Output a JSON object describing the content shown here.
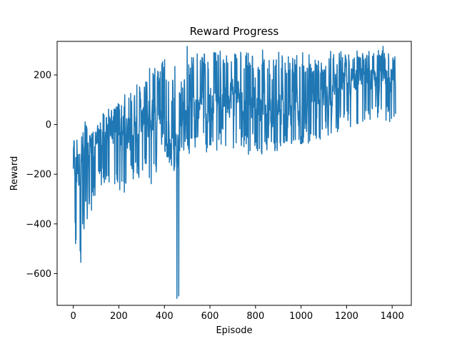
{
  "chart_data": {
    "type": "line",
    "title": "Reward Progress",
    "xlabel": "Episode",
    "ylabel": "Reward",
    "xlim": [
      -71,
      1484
    ],
    "ylim": [
      -728,
      335
    ],
    "x_ticks": [
      0,
      200,
      400,
      600,
      800,
      1000,
      1200,
      1400
    ],
    "x_tick_labels": [
      "0",
      "200",
      "400",
      "600",
      "800",
      "1000",
      "1200",
      "1400"
    ],
    "y_ticks": [
      -600,
      -400,
      -200,
      0,
      200
    ],
    "y_tick_labels": [
      "−600",
      "−400",
      "−200",
      "0",
      "200"
    ],
    "grid": false,
    "series": [
      {
        "color": "#1f77b4",
        "x_start": 0,
        "x_step": 1,
        "values_note_free": true,
        "values": []
      }
    ],
    "envelope": {
      "episodes": [
        0,
        25,
        50,
        75,
        100,
        125,
        150,
        175,
        200,
        225,
        250,
        275,
        300,
        325,
        350,
        375,
        400,
        425,
        450,
        475,
        500,
        525,
        550,
        575,
        600,
        625,
        650,
        675,
        700,
        725,
        750,
        775,
        800,
        825,
        850,
        875,
        900,
        925,
        950,
        975,
        1000,
        1025,
        1050,
        1075,
        1100,
        1125,
        1150,
        1175,
        1200,
        1225,
        1250,
        1275,
        1300,
        1325,
        1350,
        1375,
        1400,
        1415
      ],
      "low": [
        -480,
        -555,
        -420,
        -330,
        -290,
        -250,
        -220,
        -260,
        -270,
        -280,
        -270,
        -230,
        -220,
        -200,
        -260,
        -180,
        -140,
        -160,
        -200,
        -130,
        -120,
        -110,
        -100,
        -110,
        -120,
        -110,
        -90,
        -100,
        -120,
        -80,
        -110,
        -130,
        -100,
        -120,
        -110,
        -110,
        -130,
        -100,
        -90,
        -90,
        -80,
        -90,
        -80,
        -70,
        -60,
        -40,
        -40,
        -30,
        -20,
        -30,
        -20,
        -20,
        0,
        -10,
        10,
        0,
        -40,
        40
      ],
      "high": [
        -10,
        -70,
        30,
        -40,
        -20,
        40,
        70,
        60,
        90,
        120,
        130,
        170,
        170,
        230,
        250,
        240,
        270,
        140,
        260,
        170,
        270,
        280,
        300,
        290,
        300,
        290,
        300,
        290,
        310,
        300,
        280,
        300,
        270,
        300,
        300,
        270,
        300,
        300,
        280,
        290,
        300,
        310,
        260,
        260,
        260,
        300,
        280,
        300,
        300,
        300,
        300,
        300,
        300,
        310,
        310,
        300,
        310,
        270
      ],
      "center": [
        -150,
        -170,
        -120,
        -90,
        -60,
        -40,
        -20,
        -30,
        -30,
        -20,
        -10,
        0,
        30,
        10,
        20,
        0,
        -40,
        -80,
        -140,
        20,
        50,
        60,
        80,
        90,
        100,
        100,
        100,
        110,
        120,
        120,
        100,
        110,
        60,
        60,
        50,
        40,
        50,
        60,
        40,
        30,
        20,
        30,
        40,
        100,
        120,
        130,
        140,
        160,
        170,
        190,
        200,
        210,
        200,
        200,
        210,
        200,
        200,
        150
      ]
    },
    "spikes": [
      {
        "x": 10,
        "y": -480
      },
      {
        "x": 33,
        "y": -555
      },
      {
        "x": 47,
        "y": -420
      },
      {
        "x": 70,
        "y": -320
      },
      {
        "x": 80,
        "y": -345
      },
      {
        "x": 455,
        "y": -700
      },
      {
        "x": 463,
        "y": -690
      },
      {
        "x": 500,
        "y": 315
      },
      {
        "x": 1360,
        "y": 315
      }
    ],
    "seed": 12345
  }
}
